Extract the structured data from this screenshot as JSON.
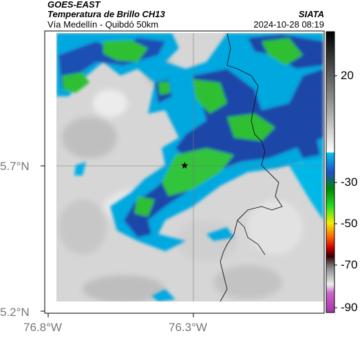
{
  "header": {
    "satellite": "GOES-EAST",
    "product": "Temperatura de Brillo CH13",
    "region": "Vía Medellín - Quibdó 50km",
    "agency": "SIATA",
    "timestamp": "2024-10-28 08:19"
  },
  "axes": {
    "lat_labels": [
      "5.7°N",
      "5.2°N"
    ],
    "lon_labels": [
      "76.8°W",
      "76.3°W"
    ]
  },
  "colorbar": {
    "labels": [
      "20",
      "-30",
      "-50",
      "-70",
      "-90"
    ]
  },
  "marker": {
    "symbol": "★",
    "name": "reference-point"
  },
  "colors": {
    "clear": "#d8d8d8",
    "cloud_low": "#00b3e6",
    "cloud_mid": "#1a4fb5",
    "cloud_high": "#2bc02b",
    "cloud_core": "#0b2a7a"
  }
}
